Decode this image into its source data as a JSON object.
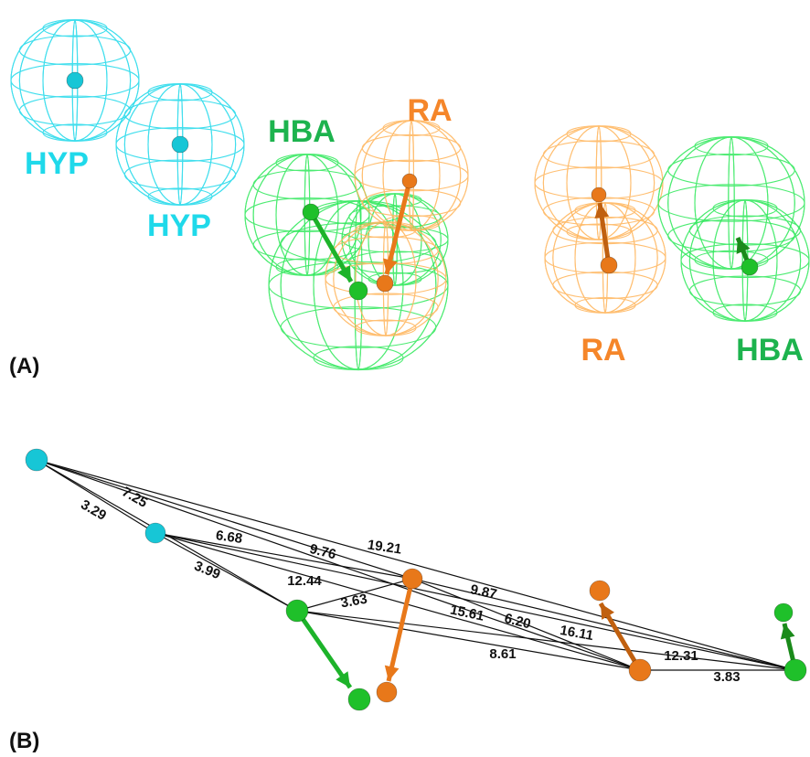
{
  "panel_a": {
    "label": "(A)",
    "features": [
      {
        "label": "HYP"
      },
      {
        "label": "HYP"
      },
      {
        "label": "HBA"
      },
      {
        "label": "RA"
      },
      {
        "label": "RA"
      },
      {
        "label": "HBA"
      }
    ]
  },
  "panel_b": {
    "label": "(B)",
    "distances": [
      "3.29",
      "7.25",
      "6.68",
      "3.99",
      "9.76",
      "19.21",
      "12.44",
      "3.63",
      "9.87",
      "15.61",
      "6.20",
      "16.11",
      "8.61",
      "12.31",
      "3.83"
    ]
  }
}
